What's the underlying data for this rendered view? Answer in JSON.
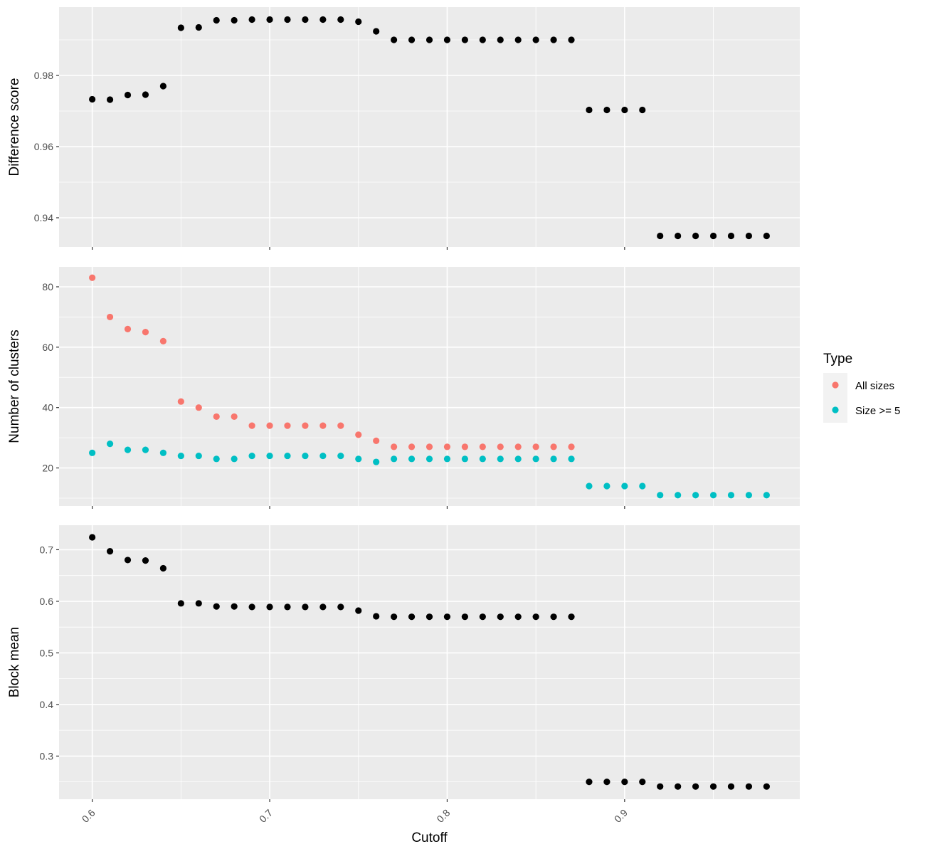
{
  "chart_data": {
    "type": "scatter",
    "xlabel": "Cutoff",
    "x_ticks": [
      0.6,
      0.7,
      0.8,
      0.9
    ],
    "x_tick_labels": [
      "0.6",
      "0.7",
      "0.8",
      "0.9"
    ],
    "xlim": [
      0.5813,
      0.9987
    ],
    "colors": {
      "point": "#000000",
      "all_sizes": "#F8766D",
      "size_ge_5": "#00BFC4",
      "panel": "#EBEBEB",
      "grid": "#FFFFFF"
    },
    "legend": {
      "title": "Type",
      "position": "right",
      "entries": [
        {
          "label": "All sizes",
          "color": "#F8766D"
        },
        {
          "label": "Size >= 5",
          "color": "#00BFC4"
        }
      ]
    },
    "panels": [
      {
        "ylabel": "Difference score",
        "ylim": [
          0.9318,
          0.9992
        ],
        "y_ticks": [
          0.94,
          0.96,
          0.98
        ],
        "y_tick_labels": [
          "0.94",
          "0.96",
          "0.98"
        ],
        "series": [
          {
            "color": "#000000",
            "x": [
              0.6,
              0.61,
              0.62,
              0.63,
              0.64,
              0.65,
              0.66,
              0.67,
              0.68,
              0.69,
              0.7,
              0.71,
              0.72,
              0.73,
              0.74,
              0.75,
              0.76,
              0.77,
              0.78,
              0.79,
              0.8,
              0.81,
              0.82,
              0.83,
              0.84,
              0.85,
              0.86,
              0.87,
              0.88,
              0.89,
              0.9,
              0.91,
              0.92,
              0.93,
              0.94,
              0.95,
              0.96,
              0.97,
              0.98
            ],
            "y": [
              0.9733,
              0.9732,
              0.9745,
              0.9746,
              0.977,
              0.9934,
              0.9935,
              0.9955,
              0.9955,
              0.9957,
              0.9957,
              0.9957,
              0.9957,
              0.9957,
              0.9957,
              0.9951,
              0.9924,
              0.99,
              0.99,
              0.99,
              0.99,
              0.99,
              0.99,
              0.99,
              0.99,
              0.99,
              0.99,
              0.99,
              0.9703,
              0.9703,
              0.9703,
              0.9703,
              0.9349,
              0.9349,
              0.9349,
              0.9349,
              0.9349,
              0.9349,
              0.9349
            ]
          }
        ]
      },
      {
        "ylabel": "Number of clusters",
        "ylim": [
          7.4,
          86.6
        ],
        "y_ticks": [
          20,
          40,
          60,
          80
        ],
        "y_tick_labels": [
          "20",
          "40",
          "60",
          "80"
        ],
        "series": [
          {
            "name": "All sizes",
            "color": "#F8766D",
            "x": [
              0.6,
              0.61,
              0.62,
              0.63,
              0.64,
              0.65,
              0.66,
              0.67,
              0.68,
              0.69,
              0.7,
              0.71,
              0.72,
              0.73,
              0.74,
              0.75,
              0.76,
              0.77,
              0.78,
              0.79,
              0.8,
              0.81,
              0.82,
              0.83,
              0.84,
              0.85,
              0.86,
              0.87
            ],
            "y": [
              83,
              70,
              66,
              65,
              62,
              42,
              40,
              37,
              37,
              34,
              34,
              34,
              34,
              34,
              34,
              31,
              29,
              27,
              27,
              27,
              27,
              27,
              27,
              27,
              27,
              27,
              27,
              27
            ]
          },
          {
            "name": "Size >= 5",
            "color": "#00BFC4",
            "x": [
              0.6,
              0.61,
              0.62,
              0.63,
              0.64,
              0.65,
              0.66,
              0.67,
              0.68,
              0.69,
              0.7,
              0.71,
              0.72,
              0.73,
              0.74,
              0.75,
              0.76,
              0.77,
              0.78,
              0.79,
              0.8,
              0.81,
              0.82,
              0.83,
              0.84,
              0.85,
              0.86,
              0.87,
              0.88,
              0.89,
              0.9,
              0.91,
              0.92,
              0.93,
              0.94,
              0.95,
              0.96,
              0.97,
              0.98
            ],
            "y": [
              25,
              28,
              26,
              26,
              25,
              24,
              24,
              23,
              23,
              24,
              24,
              24,
              24,
              24,
              24,
              23,
              22,
              23,
              23,
              23,
              23,
              23,
              23,
              23,
              23,
              23,
              23,
              23,
              14,
              14,
              14,
              14,
              11,
              11,
              11,
              11,
              11,
              11,
              11
            ]
          }
        ]
      },
      {
        "ylabel": "Block mean",
        "ylim": [
          0.2164,
          0.7475
        ],
        "y_ticks": [
          0.3,
          0.4,
          0.5,
          0.6,
          0.7
        ],
        "y_tick_labels": [
          "0.3",
          "0.4",
          "0.5",
          "0.6",
          "0.7"
        ],
        "series": [
          {
            "color": "#000000",
            "x": [
              0.6,
              0.61,
              0.62,
              0.63,
              0.64,
              0.65,
              0.66,
              0.67,
              0.68,
              0.69,
              0.7,
              0.71,
              0.72,
              0.73,
              0.74,
              0.75,
              0.76,
              0.77,
              0.78,
              0.79,
              0.8,
              0.81,
              0.82,
              0.83,
              0.84,
              0.85,
              0.86,
              0.87,
              0.88,
              0.89,
              0.9,
              0.91,
              0.92,
              0.93,
              0.94,
              0.95,
              0.96,
              0.97,
              0.98
            ],
            "y": [
              0.724,
              0.697,
              0.68,
              0.679,
              0.664,
              0.596,
              0.596,
              0.59,
              0.59,
              0.589,
              0.589,
              0.589,
              0.589,
              0.589,
              0.589,
              0.582,
              0.571,
              0.57,
              0.57,
              0.57,
              0.57,
              0.57,
              0.57,
              0.57,
              0.57,
              0.57,
              0.57,
              0.57,
              0.25,
              0.25,
              0.25,
              0.25,
              0.241,
              0.241,
              0.241,
              0.241,
              0.241,
              0.241,
              0.241
            ]
          }
        ]
      }
    ]
  }
}
